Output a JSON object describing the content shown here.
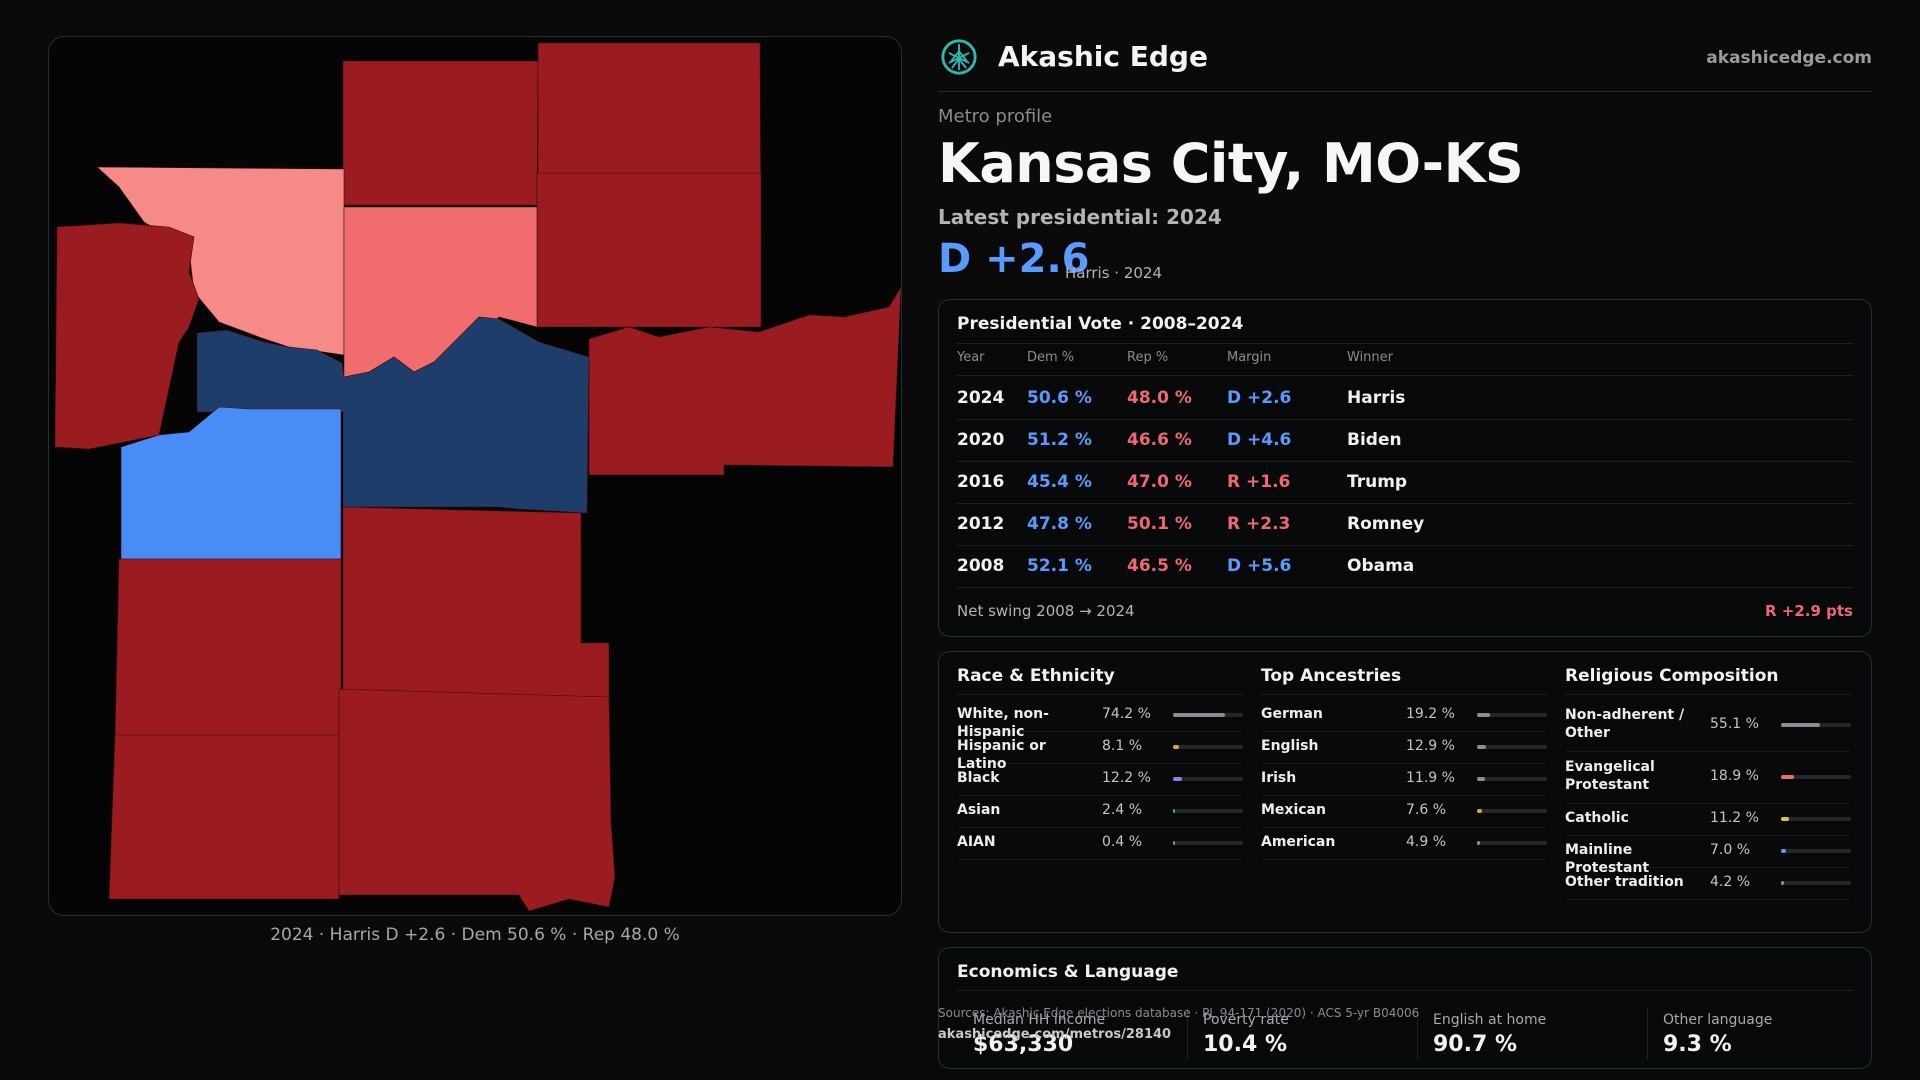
{
  "brand": {
    "name": "Akashic Edge",
    "url": "akashicedge.com",
    "logo_icon": "compass-tree-icon",
    "accent": "#2fb8b0"
  },
  "header": {
    "eyebrow": "Metro profile",
    "title": "Kansas City, MO-KS",
    "latest_label": "Latest presidential: 2024",
    "margin": "D +2.6",
    "margin_sub": "Harris · 2024"
  },
  "map": {
    "caption": "2024 · Harris D +2.6 · Dem 50.6 % · Rep 48.0 %",
    "colors": {
      "strong_rep": "#9a1b20",
      "lean_rep": "#f16c6d",
      "tilt_rep": "#f68a86",
      "strong_dem": "#4a8cf7",
      "lean_dem": "#1f3d6b"
    }
  },
  "vote_table": {
    "title": "Presidential Vote · 2008–2024",
    "columns": [
      "Year",
      "Dem %",
      "Rep %",
      "Margin",
      "Winner"
    ],
    "rows": [
      {
        "year": "2024",
        "dem": "50.6 %",
        "rep": "48.0 %",
        "margin": "D +2.6",
        "party": "D",
        "winner": "Harris"
      },
      {
        "year": "2020",
        "dem": "51.2 %",
        "rep": "46.6 %",
        "margin": "D +4.6",
        "party": "D",
        "winner": "Biden"
      },
      {
        "year": "2016",
        "dem": "45.4 %",
        "rep": "47.0 %",
        "margin": "R +1.6",
        "party": "R",
        "winner": "Trump"
      },
      {
        "year": "2012",
        "dem": "47.8 %",
        "rep": "50.1 %",
        "margin": "R +2.3",
        "party": "R",
        "winner": "Romney"
      },
      {
        "year": "2008",
        "dem": "52.1 %",
        "rep": "46.5 %",
        "margin": "D +5.6",
        "party": "D",
        "winner": "Obama"
      }
    ],
    "swing_label": "Net swing 2008 → 2024",
    "swing_value": "R +2.9 pts"
  },
  "demographics": [
    {
      "title": "Race & Ethnicity",
      "rows": [
        {
          "label": "White, non-Hispanic",
          "value": "74.2 %",
          "pct": 74.2,
          "color": "#8a8d92"
        },
        {
          "label": "Hispanic or Latino",
          "value": "8.1 %",
          "pct": 8.1,
          "color": "#e0a52a"
        },
        {
          "label": "Black",
          "value": "12.2 %",
          "pct": 12.2,
          "color": "#8f7cf0"
        },
        {
          "label": "Asian",
          "value": "2.4 %",
          "pct": 2.4,
          "color": "#29b39c"
        },
        {
          "label": "AIAN",
          "value": "0.4 %",
          "pct": 0.4,
          "color": "#8a8d92"
        }
      ]
    },
    {
      "title": "Top Ancestries",
      "rows": [
        {
          "label": "German",
          "value": "19.2 %",
          "pct": 19.2,
          "color": "#8a8d92"
        },
        {
          "label": "English",
          "value": "12.9 %",
          "pct": 12.9,
          "color": "#8a8d92"
        },
        {
          "label": "Irish",
          "value": "11.9 %",
          "pct": 11.9,
          "color": "#8a8d92"
        },
        {
          "label": "Mexican",
          "value": "7.6 %",
          "pct": 7.6,
          "color": "#e0a52a"
        },
        {
          "label": "American",
          "value": "4.9 %",
          "pct": 4.9,
          "color": "#8a8d92"
        }
      ]
    },
    {
      "title": "Religious Composition",
      "rows": [
        {
          "label": "Non-adherent / Other",
          "value": "55.1 %",
          "pct": 55.1,
          "color": "#8a8d92"
        },
        {
          "label": "Evangelical Protestant",
          "value": "18.9 %",
          "pct": 18.9,
          "color": "#f0686d"
        },
        {
          "label": "Catholic",
          "value": "11.2 %",
          "pct": 11.2,
          "color": "#e0c22a"
        },
        {
          "label": "Mainline Protestant",
          "value": "7.0 %",
          "pct": 7.0,
          "color": "#5a9bff"
        },
        {
          "label": "Other tradition",
          "value": "4.2 %",
          "pct": 4.2,
          "color": "#8a8d92"
        }
      ]
    }
  ],
  "economics": {
    "title": "Economics & Language",
    "stats": [
      {
        "label": "Median HH income",
        "value": "$63,330"
      },
      {
        "label": "Poverty rate",
        "value": "10.4 %"
      },
      {
        "label": "English at home",
        "value": "90.7 %"
      },
      {
        "label": "Other language",
        "value": "9.3 %"
      }
    ]
  },
  "footer": {
    "sources": "Sources: Akashic Edge elections database · PL 94-171 (2020) · ACS 5-yr B04006",
    "url": "akashicedge.com/metros/28140"
  }
}
